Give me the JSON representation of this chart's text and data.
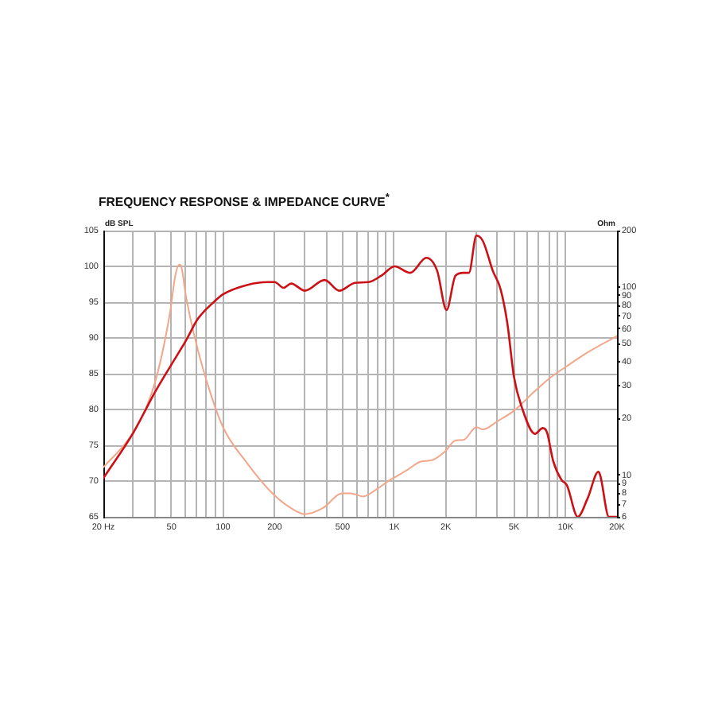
{
  "chart_data": {
    "type": "line",
    "title": "FREQUENCY RESPONSE & IMPEDANCE CURVE$^{*}$",
    "ylabel": "Ohm",
    "y2label": "dB SPL",
    "log": "xy",
    "grid": true,
    "marker": "none",
    "xlim": [
      20,
      20000
    ],
    "xticks": [
      {
        "value": 20,
        "label": "20 Hz"
      },
      {
        "value": 30,
        "label": null
      },
      {
        "value": 40,
        "label": null
      },
      50,
      {
        "value": 60,
        "label": null
      },
      {
        "value": 70,
        "label": null
      },
      {
        "value": 80,
        "label": null
      },
      {
        "value": 90,
        "label": null
      },
      100,
      200,
      {
        "value": 300,
        "label": null
      },
      {
        "value": 400,
        "label": null
      },
      500,
      {
        "value": 600,
        "label": null
      },
      {
        "value": 700,
        "label": null
      },
      {
        "value": 800,
        "label": null
      },
      {
        "value": 900,
        "label": null
      },
      {
        "value": 1000,
        "label": "1K"
      },
      {
        "value": 2000,
        "label": "2K"
      },
      {
        "value": 3000,
        "label": null
      },
      {
        "value": 4000,
        "label": null
      },
      {
        "value": 5000,
        "label": "5K"
      },
      {
        "value": 6000,
        "label": null
      },
      {
        "value": 7000,
        "label": null
      },
      {
        "value": 8000,
        "label": null
      },
      {
        "value": 9000,
        "label": null
      },
      {
        "value": 10000,
        "label": "10K"
      },
      {
        "value": 20000,
        "label": "20K"
      }
    ],
    "ylim": [
      6,
      200
    ],
    "yticks": [
      6,
      7,
      8,
      9,
      10,
      20,
      30,
      40,
      50,
      60,
      70,
      80,
      90,
      100,
      200
    ],
    "y2lim": [
      65,
      105
    ],
    "y2ticks": [
      65,
      70,
      75,
      80,
      85,
      90,
      95,
      100,
      105
    ],
    "series": [
      {
        "color": "#cc1016",
        "axis": "y2",
        "x": [
          20,
          30,
          40,
          50,
          61,
          71,
          90,
          100,
          138,
          183,
          200,
          226,
          250,
          301,
          392,
          478,
          590,
          706,
          842,
          1005,
          1240,
          1540,
          1780,
          2020,
          2280,
          2540,
          2730,
          3020,
          3300,
          3760,
          4180,
          4580,
          5000,
          5580,
          6630,
          7380,
          7800,
          8480,
          9450,
          10200,
          11800,
          13480,
          15580,
          16000,
          17940,
          20000
        ],
        "values": [
          70.4,
          76.8,
          82.4,
          86.3,
          89.7,
          92.6,
          95.2,
          96.1,
          97.4,
          97.8,
          97.8,
          97.0,
          97.6,
          96.6,
          98.1,
          96.6,
          97.7,
          97.8,
          98.7,
          100.0,
          99.1,
          101.2,
          99.4,
          93.9,
          98.7,
          99.1,
          99.1,
          104.3,
          103.5,
          99.4,
          96.8,
          92.0,
          84.6,
          80.2,
          76.6,
          77.4,
          76.8,
          72.8,
          70.2,
          69.4,
          65,
          67.6,
          71.3,
          70.7,
          65,
          65
        ]
      },
      {
        "color": "#f2a68a",
        "x": [
          20,
          30,
          40,
          49,
          52.7,
          55.5,
          56.8,
          60.8,
          67.7,
          80.8,
          100,
          138,
          197,
          262,
          301,
          385,
          496,
          556,
          658,
          788,
          940,
          1040,
          1200,
          1430,
          1660,
          1970,
          2280,
          2540,
          3020,
          3300,
          4020,
          5000,
          6630,
          8160,
          10200,
          13480,
          20000
        ],
        "values": [
          11,
          17,
          31,
          73,
          116,
          132,
          130,
          89,
          56,
          31,
          18,
          11.6,
          7.9,
          6.5,
          6.2,
          6.7,
          8.0,
          8.0,
          7.7,
          8.4,
          9.4,
          9.9,
          10.7,
          11.8,
          12,
          13.3,
          15.3,
          15.4,
          18,
          17.5,
          19.4,
          22,
          28,
          33,
          38,
          45,
          55
        ]
      }
    ]
  }
}
